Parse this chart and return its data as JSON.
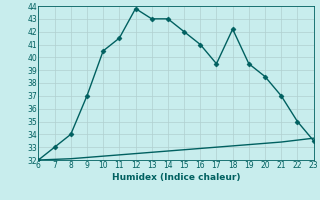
{
  "xlabel": "Humidex (Indice chaleur)",
  "ylabel": "",
  "x_main": [
    6,
    7,
    8,
    9,
    10,
    11,
    12,
    13,
    14,
    15,
    16,
    17,
    18,
    19,
    20,
    21,
    22,
    23
  ],
  "y_main": [
    32,
    33,
    34,
    37,
    40.5,
    41.5,
    43.8,
    43,
    43,
    42,
    41,
    39.5,
    42.2,
    39.5,
    38.5,
    37,
    35,
    33.5
  ],
  "x_line2": [
    6,
    7,
    8,
    9,
    10,
    11,
    12,
    13,
    14,
    15,
    16,
    17,
    18,
    19,
    20,
    21,
    22,
    23
  ],
  "y_line2": [
    32.0,
    32.05,
    32.1,
    32.2,
    32.3,
    32.4,
    32.5,
    32.6,
    32.7,
    32.8,
    32.9,
    33.0,
    33.1,
    33.2,
    33.3,
    33.4,
    33.55,
    33.7
  ],
  "line_color": "#006060",
  "bg_color": "#c8eded",
  "grid_color": "#b0d0d0",
  "text_color": "#006060",
  "ylim": [
    32,
    44
  ],
  "xlim": [
    6,
    23
  ],
  "yticks": [
    32,
    33,
    34,
    35,
    36,
    37,
    38,
    39,
    40,
    41,
    42,
    43,
    44
  ],
  "xticks": [
    6,
    7,
    8,
    9,
    10,
    11,
    12,
    13,
    14,
    15,
    16,
    17,
    18,
    19,
    20,
    21,
    22,
    23
  ],
  "marker": "D",
  "markersize": 2.5,
  "linewidth": 1.0,
  "tick_fontsize": 5.5,
  "xlabel_fontsize": 6.5
}
